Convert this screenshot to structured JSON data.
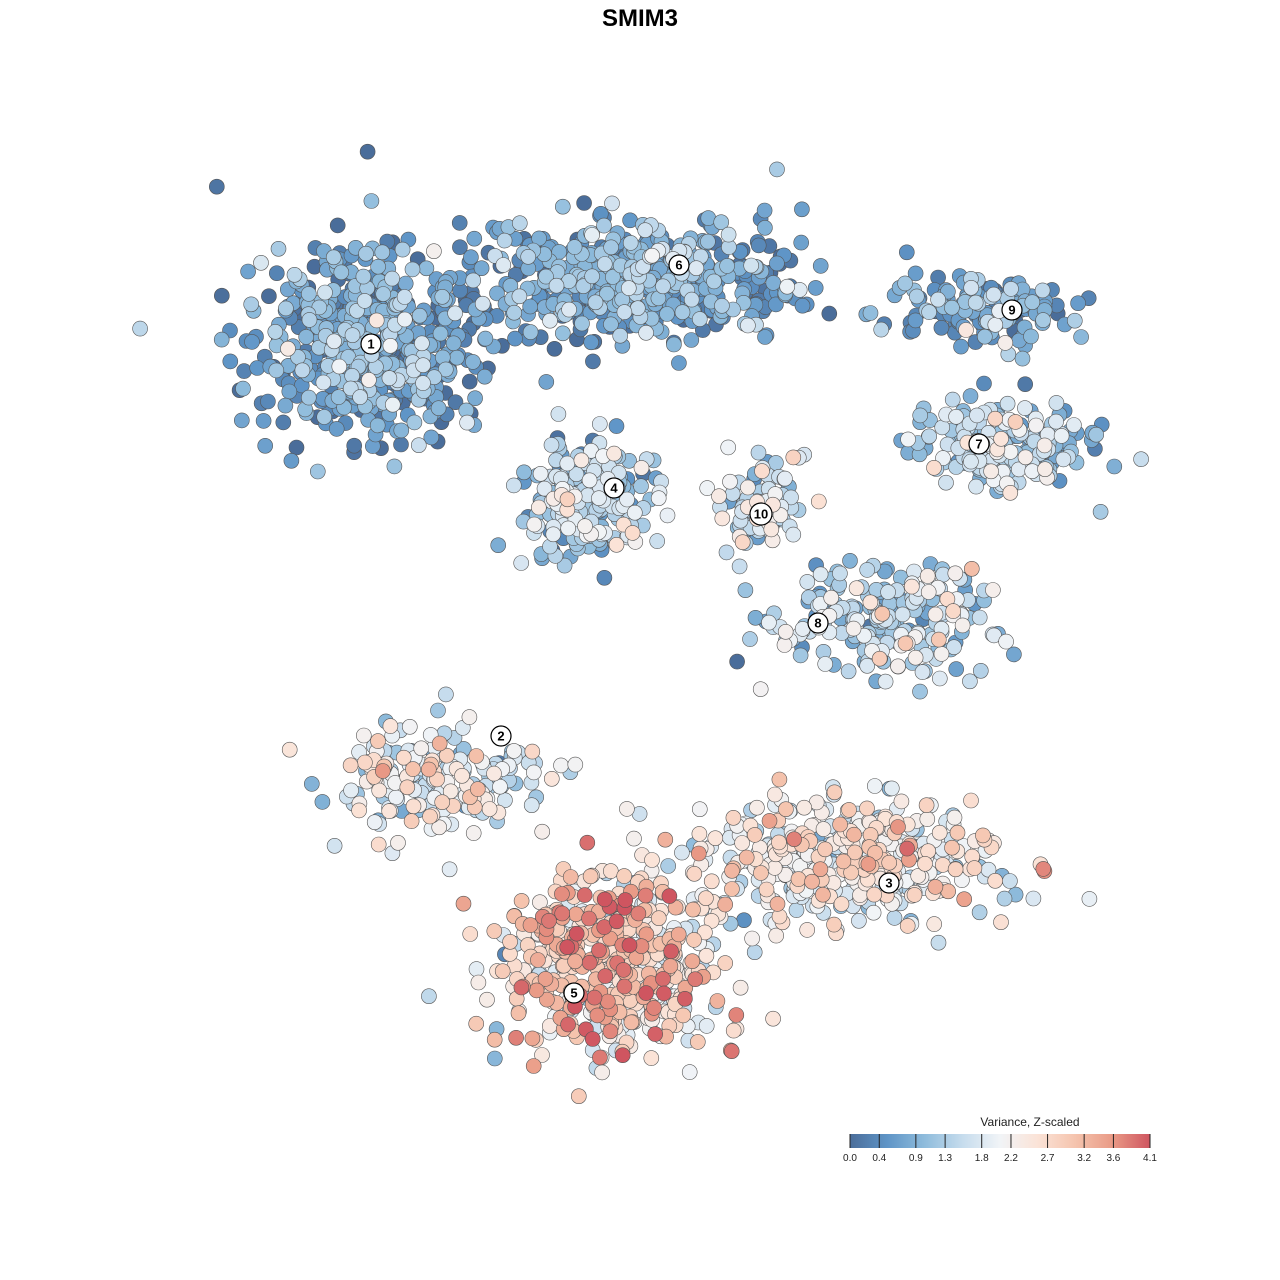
{
  "chart_data": {
    "type": "scatter",
    "title": "SMIM3",
    "xlabel": "",
    "ylabel": "",
    "grid": false,
    "axes_visible": false,
    "legend_placement": "bottom-right",
    "legend": {
      "title": "Variance, Z-scaled",
      "ticks": [
        "0.0",
        "0.4",
        "0.9",
        "1.3",
        "1.8",
        "2.2",
        "2.7",
        "3.2",
        "3.6",
        "4.1"
      ],
      "colors": [
        "#4a6d9a",
        "#5f95c7",
        "#8fbcdc",
        "#c6dced",
        "#f1f4f7",
        "#fbe3d7",
        "#f5c4ae",
        "#e99a86",
        "#cf5560"
      ]
    },
    "clusters": [
      {
        "label": "1",
        "value": 0.6
      },
      {
        "label": "2",
        "value": 1.9
      },
      {
        "label": "3",
        "value": 2.2
      },
      {
        "label": "4",
        "value": 1.2
      },
      {
        "label": "5",
        "value": 2.6
      },
      {
        "label": "6",
        "value": 0.7
      },
      {
        "label": "7",
        "value": 1.2
      },
      {
        "label": "8",
        "value": 1.5
      },
      {
        "label": "9",
        "value": 0.8
      },
      {
        "label": "10",
        "value": 1.6
      }
    ]
  }
}
